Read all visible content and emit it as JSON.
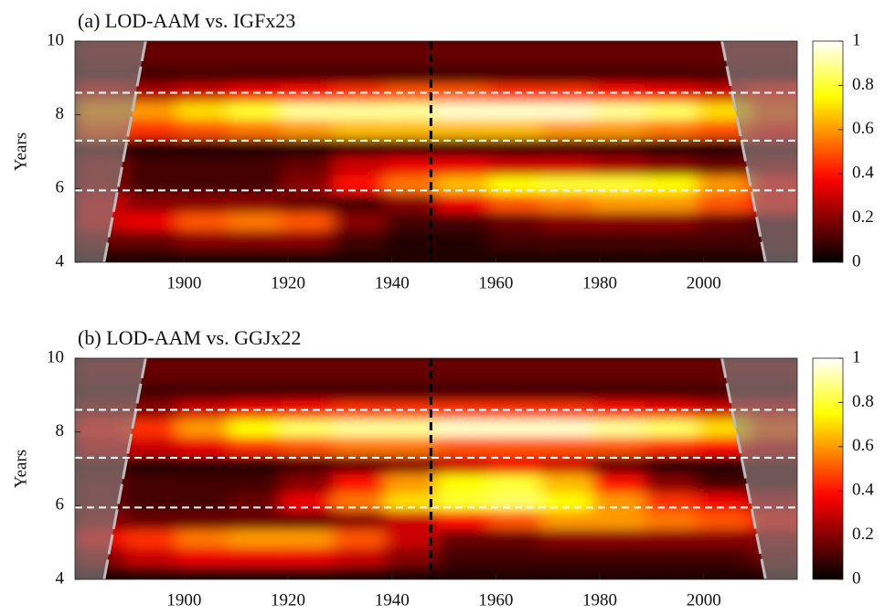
{
  "chart_data": [
    {
      "type": "heatmap",
      "title": "(a) LOD-AAM vs. IGFx23",
      "ylabel": "Years",
      "x": [
        1885,
        1895,
        1905,
        1915,
        1925,
        1935,
        1945,
        1955,
        1965,
        1975,
        1985,
        1995,
        2005,
        2015
      ],
      "y": [
        4.25,
        4.75,
        5.25,
        5.75,
        6.25,
        6.75,
        7.25,
        7.75,
        8.25,
        8.75,
        9.25,
        9.75
      ],
      "z": [
        [
          0.05,
          0.05,
          0.05,
          0.05,
          0.05,
          0.05,
          0.05,
          0.05,
          0.05,
          0.05,
          0.05,
          0.05,
          0.05,
          0.05
        ],
        [
          0.15,
          0.15,
          0.2,
          0.2,
          0.2,
          0.1,
          0.05,
          0.05,
          0.1,
          0.1,
          0.1,
          0.1,
          0.1,
          0.1
        ],
        [
          0.3,
          0.35,
          0.5,
          0.55,
          0.5,
          0.2,
          0.1,
          0.1,
          0.15,
          0.2,
          0.2,
          0.2,
          0.15,
          0.1
        ],
        [
          0.3,
          0.2,
          0.2,
          0.2,
          0.15,
          0.1,
          0.2,
          0.35,
          0.5,
          0.55,
          0.6,
          0.6,
          0.5,
          0.4
        ],
        [
          0.2,
          0.1,
          0.1,
          0.1,
          0.2,
          0.4,
          0.55,
          0.65,
          0.75,
          0.8,
          0.8,
          0.75,
          0.6,
          0.4
        ],
        [
          0.2,
          0.1,
          0.1,
          0.1,
          0.15,
          0.3,
          0.35,
          0.35,
          0.3,
          0.3,
          0.25,
          0.2,
          0.15,
          0.2
        ],
        [
          0.1,
          0.05,
          0.05,
          0.05,
          0.05,
          0.1,
          0.1,
          0.1,
          0.1,
          0.1,
          0.1,
          0.05,
          0.05,
          0.1
        ],
        [
          0.5,
          0.45,
          0.5,
          0.55,
          0.6,
          0.65,
          0.65,
          0.65,
          0.65,
          0.6,
          0.6,
          0.55,
          0.5,
          0.4
        ],
        [
          0.6,
          0.6,
          0.7,
          0.8,
          0.9,
          0.9,
          0.9,
          0.95,
          0.95,
          0.95,
          0.9,
          0.85,
          0.7,
          0.5
        ],
        [
          0.3,
          0.25,
          0.3,
          0.35,
          0.4,
          0.45,
          0.5,
          0.5,
          0.45,
          0.45,
          0.4,
          0.35,
          0.3,
          0.4
        ],
        [
          0.1,
          0.1,
          0.1,
          0.1,
          0.1,
          0.1,
          0.1,
          0.1,
          0.1,
          0.1,
          0.1,
          0.1,
          0.1,
          0.1
        ],
        [
          0.15,
          0.15,
          0.15,
          0.15,
          0.15,
          0.15,
          0.15,
          0.15,
          0.15,
          0.15,
          0.15,
          0.15,
          0.15,
          0.15
        ]
      ],
      "xlim": [
        1879,
        2018
      ],
      "ylim": [
        4,
        10
      ],
      "xticks": [
        1900,
        1920,
        1940,
        1960,
        1980,
        2000
      ],
      "yticks": [
        4,
        6,
        8,
        10
      ],
      "zlim": [
        0,
        1
      ],
      "zticks": [
        0,
        0.2,
        0.4,
        0.6,
        0.8,
        1
      ],
      "hlines": [
        8.6,
        7.3,
        5.95
      ],
      "vline": 1947.5,
      "coi": {
        "left": [
          [
            1884.6,
            4
          ],
          [
            1892.6,
            10
          ]
        ],
        "right": [
          [
            2003.5,
            10
          ],
          [
            2011.9,
            4
          ]
        ]
      }
    },
    {
      "type": "heatmap",
      "title": "(b) LOD-AAM vs. GGJx22",
      "ylabel": "Years",
      "x": [
        1885,
        1895,
        1905,
        1915,
        1925,
        1935,
        1945,
        1955,
        1965,
        1975,
        1985,
        1995,
        2005,
        2015
      ],
      "y": [
        4.25,
        4.75,
        5.25,
        5.75,
        6.25,
        6.75,
        7.25,
        7.75,
        8.25,
        8.75,
        9.25,
        9.75
      ],
      "z": [
        [
          0.05,
          0.05,
          0.05,
          0.05,
          0.05,
          0.05,
          0.05,
          0.05,
          0.05,
          0.05,
          0.05,
          0.05,
          0.05,
          0.05
        ],
        [
          0.2,
          0.3,
          0.35,
          0.35,
          0.35,
          0.3,
          0.2,
          0.1,
          0.1,
          0.1,
          0.1,
          0.1,
          0.1,
          0.15
        ],
        [
          0.35,
          0.45,
          0.55,
          0.6,
          0.6,
          0.5,
          0.3,
          0.15,
          0.15,
          0.2,
          0.2,
          0.2,
          0.2,
          0.2
        ],
        [
          0.2,
          0.15,
          0.15,
          0.15,
          0.15,
          0.2,
          0.3,
          0.4,
          0.5,
          0.6,
          0.6,
          0.55,
          0.5,
          0.4
        ],
        [
          0.15,
          0.1,
          0.1,
          0.15,
          0.35,
          0.55,
          0.7,
          0.8,
          0.85,
          0.75,
          0.6,
          0.45,
          0.35,
          0.25
        ],
        [
          0.15,
          0.1,
          0.1,
          0.1,
          0.2,
          0.4,
          0.6,
          0.75,
          0.8,
          0.65,
          0.4,
          0.2,
          0.1,
          0.1
        ],
        [
          0.1,
          0.05,
          0.05,
          0.05,
          0.1,
          0.15,
          0.2,
          0.3,
          0.35,
          0.3,
          0.15,
          0.05,
          0.05,
          0.1
        ],
        [
          0.3,
          0.3,
          0.35,
          0.45,
          0.5,
          0.55,
          0.55,
          0.5,
          0.5,
          0.5,
          0.5,
          0.45,
          0.4,
          0.3
        ],
        [
          0.4,
          0.45,
          0.6,
          0.75,
          0.85,
          0.9,
          0.9,
          0.95,
          0.95,
          0.95,
          0.9,
          0.85,
          0.7,
          0.5
        ],
        [
          0.2,
          0.2,
          0.3,
          0.35,
          0.4,
          0.45,
          0.45,
          0.45,
          0.45,
          0.45,
          0.4,
          0.35,
          0.3,
          0.3
        ],
        [
          0.1,
          0.1,
          0.1,
          0.1,
          0.1,
          0.1,
          0.1,
          0.1,
          0.1,
          0.1,
          0.1,
          0.1,
          0.1,
          0.1
        ],
        [
          0.15,
          0.15,
          0.15,
          0.15,
          0.15,
          0.15,
          0.15,
          0.15,
          0.15,
          0.15,
          0.15,
          0.15,
          0.15,
          0.15
        ]
      ],
      "xlim": [
        1879,
        2018
      ],
      "ylim": [
        4,
        10
      ],
      "xticks": [
        1900,
        1920,
        1940,
        1960,
        1980,
        2000
      ],
      "yticks": [
        4,
        6,
        8,
        10
      ],
      "zlim": [
        0,
        1
      ],
      "zticks": [
        0,
        0.2,
        0.4,
        0.6,
        0.8,
        1
      ],
      "hlines": [
        8.6,
        7.3,
        5.95
      ],
      "vline": 1947.5,
      "coi": {
        "left": [
          [
            1884.6,
            4
          ],
          [
            1892.6,
            10
          ]
        ],
        "right": [
          [
            2003.5,
            10
          ],
          [
            2011.9,
            4
          ]
        ]
      }
    }
  ]
}
